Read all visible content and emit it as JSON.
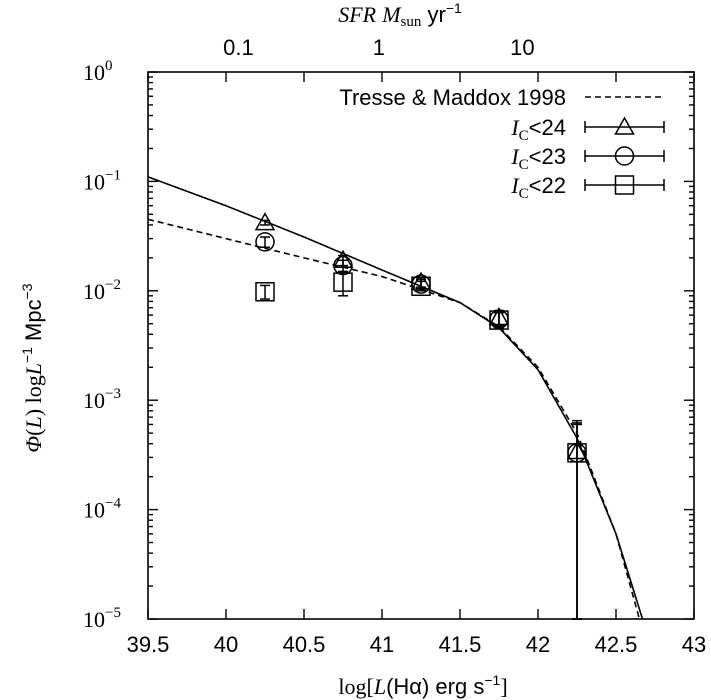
{
  "chart_data": {
    "type": "scatter",
    "title": "",
    "xlabel": "log[L(Hα) erg s⁻¹]",
    "ylabel": "Φ(L) logL⁻¹ Mpc⁻³",
    "top_xlabel": "SFR M_sun yr⁻¹",
    "xlim": [
      39.5,
      43
    ],
    "ylim": [
      1e-05,
      1
    ],
    "y_scale": "log",
    "x_ticks": [
      "39.5",
      "40",
      "40.5",
      "41",
      "41.5",
      "42",
      "42.5",
      "43"
    ],
    "y_ticks": [
      {
        "base": "10",
        "exp": "0",
        "value": 1
      },
      {
        "base": "10",
        "exp": "−1",
        "value": 0.1
      },
      {
        "base": "10",
        "exp": "−2",
        "value": 0.01
      },
      {
        "base": "10",
        "exp": "−3",
        "value": 0.001
      },
      {
        "base": "10",
        "exp": "−4",
        "value": 0.0001
      },
      {
        "base": "10",
        "exp": "−5",
        "value": 1e-05
      }
    ],
    "top_ticks": [
      {
        "label": "0.1",
        "x": 40.08
      },
      {
        "label": "1",
        "x": 40.98
      },
      {
        "label": "10",
        "x": 41.9
      }
    ],
    "grid": false,
    "legend_position": "top-right",
    "series": [
      {
        "name": "I_C<24",
        "marker": "triangle",
        "x": [
          40.25,
          40.75,
          41.25,
          41.75,
          42.25
        ],
        "y": [
          0.042,
          0.019,
          0.012,
          0.0057,
          0.00034
        ],
        "yerr_low": [
          0.04,
          0.017,
          0.0108,
          0.0048,
          1e-05
        ],
        "yerr_high": [
          0.044,
          0.021,
          0.0132,
          0.0066,
          0.00065
        ]
      },
      {
        "name": "I_C<23",
        "marker": "circle",
        "x": [
          40.25,
          40.75,
          41.25,
          41.75,
          42.25
        ],
        "y": [
          0.028,
          0.017,
          0.0115,
          0.0055,
          0.00033
        ],
        "yerr_low": [
          0.025,
          0.015,
          0.0105,
          0.0047,
          1e-05
        ],
        "yerr_high": [
          0.031,
          0.019,
          0.0127,
          0.0064,
          0.00062
        ]
      },
      {
        "name": "I_C<22",
        "marker": "square",
        "x": [
          40.25,
          40.75,
          41.25,
          41.75,
          42.25
        ],
        "y": [
          0.0098,
          0.012,
          0.011,
          0.0054,
          0.00033
        ],
        "yerr_low": [
          0.0084,
          0.009,
          0.01,
          0.0046,
          1e-05
        ],
        "yerr_high": [
          0.0112,
          0.015,
          0.0122,
          0.0063,
          0.0006
        ]
      }
    ],
    "fit_curves": [
      {
        "style": "solid",
        "label": "",
        "x": [
          39.5,
          40.0,
          40.5,
          41.0,
          41.5,
          41.75,
          42.0,
          42.25,
          42.5,
          42.67
        ],
        "y": [
          0.11,
          0.06,
          0.031,
          0.0155,
          0.0078,
          0.0046,
          0.0019,
          0.00045,
          6e-05,
          1e-05
        ]
      },
      {
        "name": "Tresse & Maddox 1998",
        "style": "dashed",
        "x": [
          39.5,
          40.0,
          40.5,
          41.0,
          41.5,
          41.75,
          42.0,
          42.25,
          42.5,
          42.65
        ],
        "y": [
          0.045,
          0.03,
          0.02,
          0.0135,
          0.0078,
          0.0047,
          0.002,
          0.0005,
          6e-05,
          1e-05
        ]
      }
    ],
    "legend": [
      {
        "text": "Tresse & Maddox 1998",
        "symbol": "dashed"
      },
      {
        "italic": "I",
        "sub": "C",
        "rest": "<24",
        "symbol": "triangle"
      },
      {
        "italic": "I",
        "sub": "C",
        "rest": "<23",
        "symbol": "circle"
      },
      {
        "italic": "I",
        "sub": "C",
        "rest": "<22",
        "symbol": "square"
      }
    ]
  }
}
